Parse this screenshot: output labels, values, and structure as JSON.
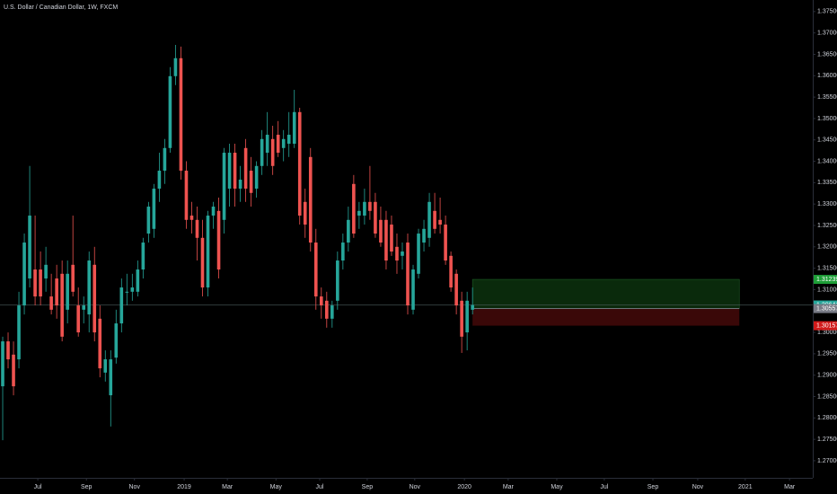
{
  "chart_data": {
    "type": "candlestick",
    "title": "U.S. Dollar / Canadian Dollar, 1W, FXCM",
    "up_color": "#26a69a",
    "down_color": "#ef5350",
    "open": [
      1.2874,
      1.2979,
      1.2948,
      1.2937,
      1.3063,
      1.3126,
      1.3147,
      1.3147,
      1.3126,
      1.3084,
      1.3126,
      1.3137,
      1.3053,
      1.3158,
      1.3063,
      1.3053,
      1.3042,
      1.3158,
      1.3032,
      1.2906,
      1.2853,
      1.2941,
      1.3021,
      1.3095,
      1.3095,
      1.3095,
      1.3147,
      1.3231,
      1.3242,
      1.3336,
      1.3378,
      1.3431,
      1.3599,
      1.3641,
      1.3378,
      1.3273,
      1.3263,
      1.3221,
      1.3105,
      1.3273,
      1.3284,
      1.3263,
      1.3336,
      1.342,
      1.3336,
      1.3431,
      1.3378,
      1.3336,
      1.3389,
      1.342,
      1.3452,
      1.3462,
      1.3431,
      1.3441,
      1.3441,
      1.3515,
      1.3305,
      1.341,
      1.321,
      1.3084,
      1.3074,
      1.3032,
      1.3074,
      1.3168,
      1.321,
      1.3347,
      1.3273,
      1.3273,
      1.3305,
      1.3305,
      1.3263,
      1.3263,
      1.3252,
      1.32,
      1.3179,
      1.321,
      1.3053,
      1.3137,
      1.321,
      1.3221,
      1.3284,
      1.3263,
      1.3252,
      1.3179,
      1.3137,
      1.3074,
      1.3,
      1.3053
    ],
    "high": [
      1.299,
      1.3,
      1.2979,
      1.3095,
      1.3231,
      1.3389,
      1.3273,
      1.3189,
      1.32,
      1.3137,
      1.3158,
      1.3168,
      1.3168,
      1.3273,
      1.3105,
      1.3084,
      1.3189,
      1.32,
      1.3063,
      1.2958,
      1.2958,
      1.3053,
      1.3126,
      1.3137,
      1.3137,
      1.3168,
      1.3221,
      1.3305,
      1.3347,
      1.342,
      1.3452,
      1.362,
      1.3672,
      1.3668,
      1.34,
      1.3305,
      1.3294,
      1.3263,
      1.3284,
      1.3305,
      1.3315,
      1.3431,
      1.3441,
      1.3441,
      1.3389,
      1.3452,
      1.341,
      1.34,
      1.3473,
      1.3515,
      1.3483,
      1.3494,
      1.3473,
      1.3515,
      1.3567,
      1.3525,
      1.3336,
      1.3431,
      1.3242,
      1.3105,
      1.3095,
      1.3074,
      1.3189,
      1.3231,
      1.3294,
      1.3368,
      1.3305,
      1.3336,
      1.3389,
      1.3326,
      1.3294,
      1.3284,
      1.3273,
      1.3231,
      1.321,
      1.3231,
      1.3158,
      1.3242,
      1.3263,
      1.3326,
      1.3326,
      1.3315,
      1.3273,
      1.3189,
      1.3147,
      1.3095,
      1.3095,
      1.3105
    ],
    "low": [
      1.2748,
      1.2916,
      1.2853,
      1.2916,
      1.3042,
      1.3105,
      1.3063,
      1.3063,
      1.3095,
      1.3042,
      1.3032,
      1.2979,
      1.3021,
      1.3084,
      1.299,
      1.3021,
      1.3,
      1.2979,
      1.2895,
      1.2885,
      1.278,
      1.2927,
      1.3,
      1.3063,
      1.3074,
      1.3084,
      1.3126,
      1.321,
      1.3221,
      1.3305,
      1.3347,
      1.342,
      1.3578,
      1.3357,
      1.3242,
      1.3231,
      1.3168,
      1.3084,
      1.3084,
      1.3242,
      1.3126,
      1.3231,
      1.3294,
      1.3294,
      1.3305,
      1.3305,
      1.3294,
      1.3315,
      1.3368,
      1.3389,
      1.3368,
      1.341,
      1.34,
      1.341,
      1.3431,
      1.3252,
      1.3221,
      1.3189,
      1.3053,
      1.3032,
      1.3011,
      1.3011,
      1.3053,
      1.3147,
      1.3189,
      1.3221,
      1.3242,
      1.3252,
      1.3263,
      1.3221,
      1.32,
      1.3147,
      1.3179,
      1.3137,
      1.3147,
      1.3042,
      1.3042,
      1.3126,
      1.3189,
      1.32,
      1.3231,
      1.3231,
      1.3158,
      1.3095,
      1.3042,
      1.2952,
      1.2958,
      1.3042
    ],
    "close": [
      1.2979,
      1.2937,
      1.2874,
      1.3063,
      1.321,
      1.3273,
      1.3084,
      1.3084,
      1.3158,
      1.3053,
      1.3063,
      1.299,
      1.3137,
      1.3095,
      1.3,
      1.3063,
      1.3168,
      1.3,
      1.2916,
      1.2937,
      1.2937,
      1.3021,
      1.3105,
      1.3095,
      1.3105,
      1.3147,
      1.321,
      1.3294,
      1.3336,
      1.3378,
      1.3431,
      1.3599,
      1.3641,
      1.3378,
      1.3263,
      1.3263,
      1.3221,
      1.3105,
      1.3273,
      1.3294,
      1.3147,
      1.342,
      1.342,
      1.3336,
      1.3357,
      1.3336,
      1.3326,
      1.3389,
      1.3452,
      1.3462,
      1.3389,
      1.342,
      1.3452,
      1.3462,
      1.3515,
      1.3273,
      1.3252,
      1.321,
      1.3084,
      1.3063,
      1.3032,
      1.3063,
      1.3168,
      1.321,
      1.3263,
      1.3231,
      1.3284,
      1.3305,
      1.3284,
      1.3231,
      1.321,
      1.3168,
      1.3189,
      1.3168,
      1.3189,
      1.3063,
      1.3147,
      1.3231,
      1.3242,
      1.3305,
      1.3242,
      1.3252,
      1.3168,
      1.3105,
      1.3063,
      1.299,
      1.3074,
      1.3064
    ],
    "last_price": 1.30641,
    "last_price_color": "#26a69a",
    "position": {
      "start": 87,
      "end": 136.4,
      "entry": 1.30557,
      "target": 1.31239,
      "stop": 1.30157,
      "entry_color": "#787b86",
      "target_color": "#1e9e37",
      "stop_color": "#d11a1a",
      "profit_fill": "#0a2a0c",
      "loss_fill": "#3a0808"
    },
    "xlim": [
      -0.5,
      150
    ],
    "xticks": [
      {
        "value": 6.5,
        "label": "Jul"
      },
      {
        "value": 15.5,
        "label": "Sep"
      },
      {
        "value": 24.4,
        "label": "Nov"
      },
      {
        "value": 33.6,
        "label": "2019"
      },
      {
        "value": 41.6,
        "label": "Mar"
      },
      {
        "value": 50.6,
        "label": "May"
      },
      {
        "value": 58.7,
        "label": "Jul"
      },
      {
        "value": 67.5,
        "label": "Sep"
      },
      {
        "value": 76.3,
        "label": "Nov"
      },
      {
        "value": 85.5,
        "label": "2020"
      },
      {
        "value": 93.6,
        "label": "Mar"
      },
      {
        "value": 102.6,
        "label": "May"
      },
      {
        "value": 111.4,
        "label": "Jul"
      },
      {
        "value": 120.4,
        "label": "Sep"
      },
      {
        "value": 128.7,
        "label": "Nov"
      },
      {
        "value": 137.5,
        "label": "2021"
      },
      {
        "value": 145.7,
        "label": "Mar"
      }
    ],
    "ylim": [
      1.266,
      1.3777
    ],
    "yticks": [
      {
        "value": 1.27,
        "label": "1.27000"
      },
      {
        "value": 1.275,
        "label": "1.27500"
      },
      {
        "value": 1.28,
        "label": "1.28000"
      },
      {
        "value": 1.285,
        "label": "1.28500"
      },
      {
        "value": 1.29,
        "label": "1.29000"
      },
      {
        "value": 1.295,
        "label": "1.29500"
      },
      {
        "value": 1.3,
        "label": "1.30000"
      },
      {
        "value": 1.305,
        "label": "1.30500"
      },
      {
        "value": 1.31,
        "label": "1.31000"
      },
      {
        "value": 1.315,
        "label": "1.31500"
      },
      {
        "value": 1.32,
        "label": "1.32000"
      },
      {
        "value": 1.325,
        "label": "1.32500"
      },
      {
        "value": 1.33,
        "label": "1.33000"
      },
      {
        "value": 1.335,
        "label": "1.33500"
      },
      {
        "value": 1.34,
        "label": "1.34000"
      },
      {
        "value": 1.345,
        "label": "1.34500"
      },
      {
        "value": 1.35,
        "label": "1.35000"
      },
      {
        "value": 1.355,
        "label": "1.35500"
      },
      {
        "value": 1.36,
        "label": "1.36000"
      },
      {
        "value": 1.365,
        "label": "1.36500"
      },
      {
        "value": 1.37,
        "label": "1.37000"
      },
      {
        "value": 1.375,
        "label": "1.37500"
      }
    ]
  }
}
